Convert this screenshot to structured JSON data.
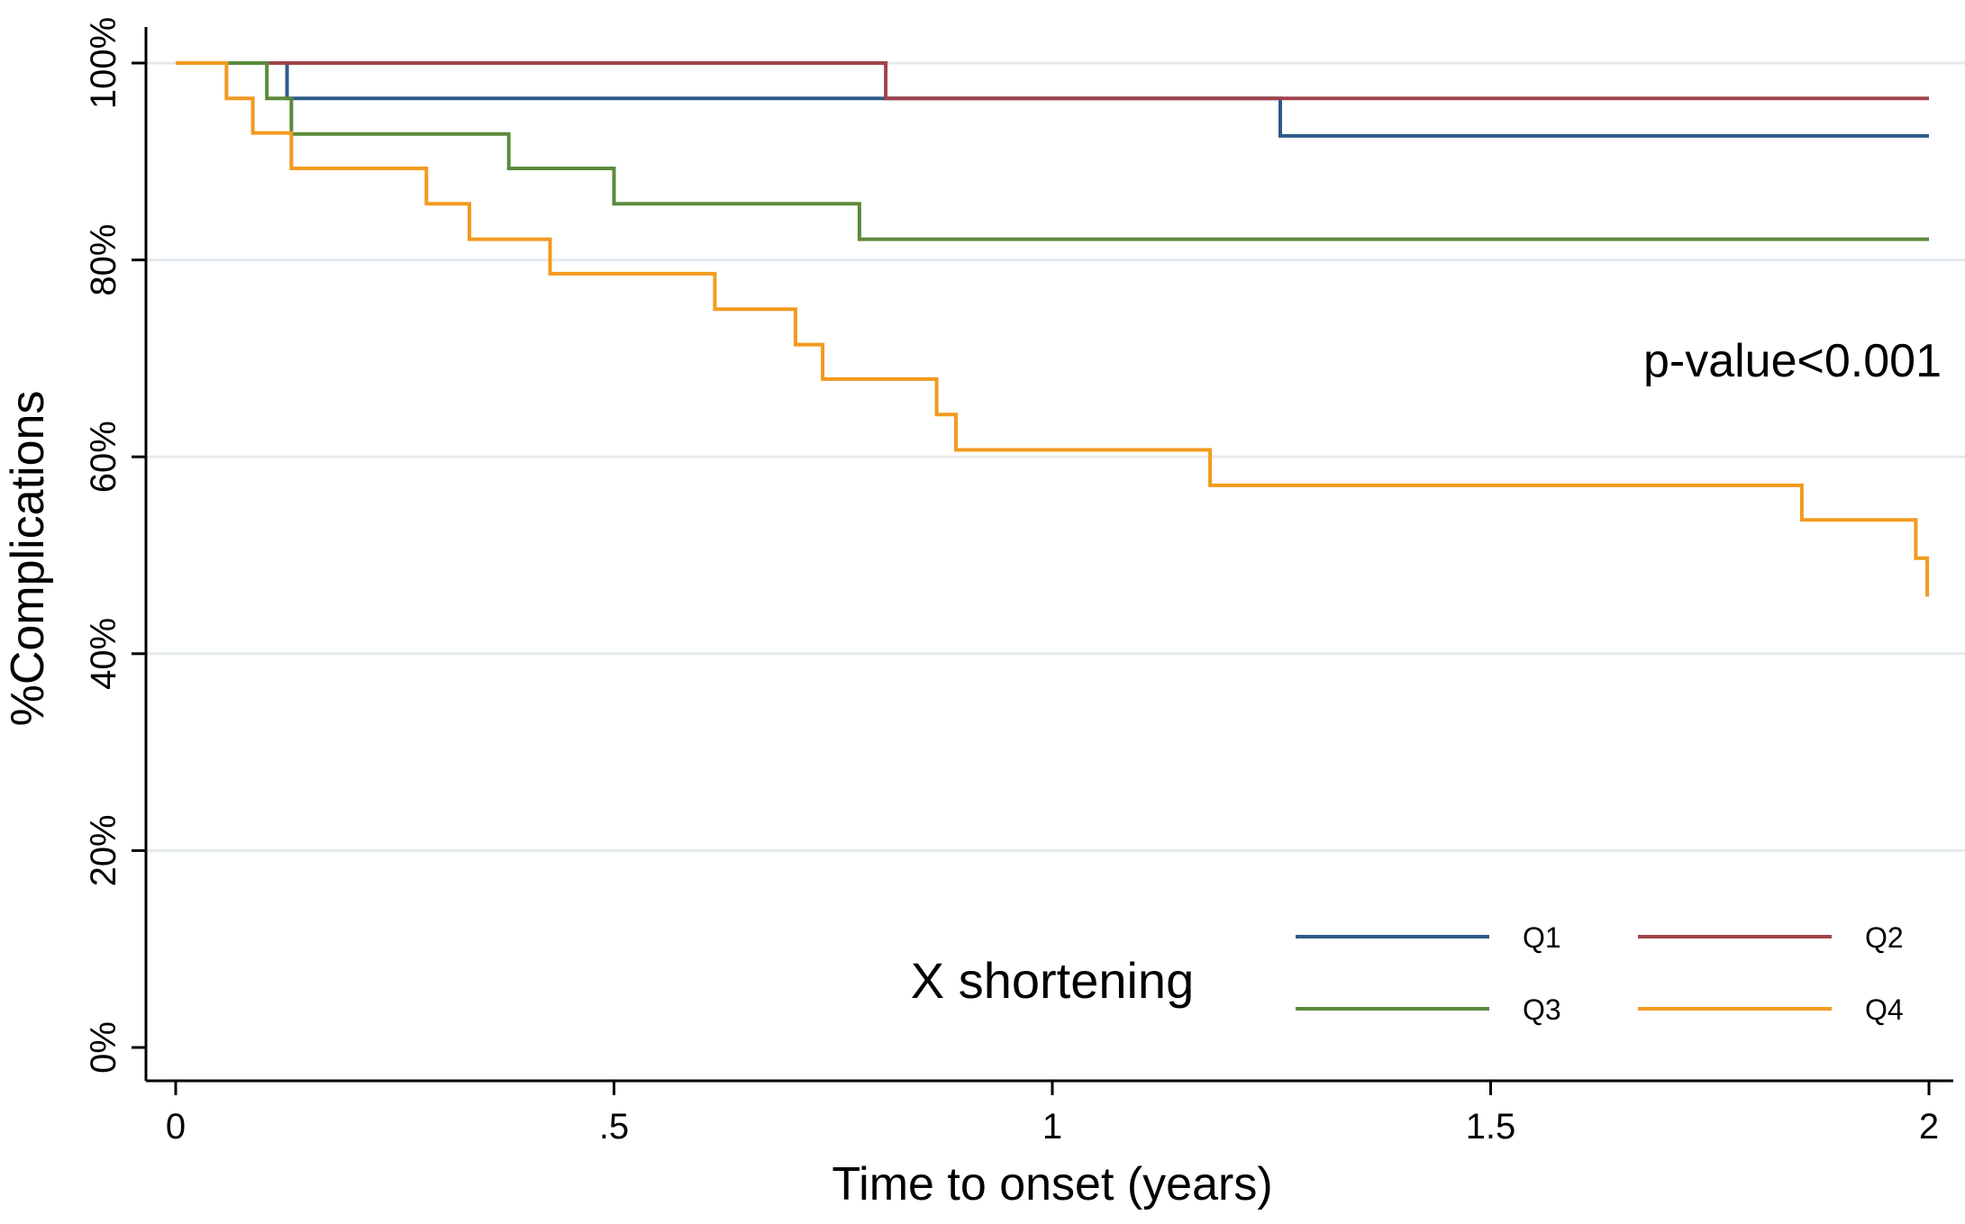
{
  "chart_data": {
    "type": "line",
    "subtype": "kaplan-meier-step",
    "title": "",
    "xlabel": "Time to onset (years)",
    "ylabel": "%Complications",
    "xlim": [
      0,
      2
    ],
    "ylim": [
      0,
      100
    ],
    "x_ticks": [
      {
        "value": 0,
        "label": "0"
      },
      {
        "value": 0.5,
        "label": ".5"
      },
      {
        "value": 1,
        "label": "1"
      },
      {
        "value": 1.5,
        "label": "1.5"
      },
      {
        "value": 2,
        "label": "2"
      }
    ],
    "y_ticks": [
      {
        "value": 0,
        "label": "0%"
      },
      {
        "value": 20,
        "label": "20%"
      },
      {
        "value": 40,
        "label": "40%"
      },
      {
        "value": 60,
        "label": "60%"
      },
      {
        "value": 80,
        "label": "80%"
      },
      {
        "value": 100,
        "label": "100%"
      }
    ],
    "grid": "horizontal",
    "annotation": "p-value<0.001",
    "legend": {
      "title": "X shortening",
      "placement": "bottom-right"
    },
    "series": [
      {
        "name": "Q1",
        "color": "#2e5a87",
        "x": [
          0,
          0.127,
          0.127,
          1.26,
          1.26,
          2.0
        ],
        "y": [
          100,
          100,
          96.4,
          96.4,
          92.6,
          92.6
        ]
      },
      {
        "name": "Q2",
        "color": "#a0434b",
        "x": [
          0,
          0.81,
          0.81,
          2.0
        ],
        "y": [
          100,
          100,
          96.4,
          96.4
        ]
      },
      {
        "name": "Q3",
        "color": "#5b8a3c",
        "x": [
          0,
          0.104,
          0.104,
          0.132,
          0.132,
          0.38,
          0.38,
          0.5,
          0.5,
          0.78,
          0.78,
          2.0
        ],
        "y": [
          100,
          100,
          96.4,
          96.4,
          92.8,
          92.8,
          89.3,
          89.3,
          85.7,
          85.7,
          82.1,
          82.1
        ]
      },
      {
        "name": "Q4",
        "color": "#f39a1e",
        "x": [
          0,
          0.058,
          0.058,
          0.088,
          0.088,
          0.132,
          0.132,
          0.286,
          0.286,
          0.335,
          0.335,
          0.427,
          0.427,
          0.615,
          0.615,
          0.707,
          0.707,
          0.738,
          0.738,
          0.868,
          0.868,
          0.89,
          0.89,
          1.18,
          1.18,
          1.855,
          1.855,
          1.985,
          1.985,
          1.998,
          1.998
        ],
        "y": [
          100,
          100,
          96.4,
          96.4,
          92.9,
          92.9,
          89.3,
          89.3,
          85.7,
          85.7,
          82.1,
          82.1,
          78.6,
          78.6,
          75.0,
          75.0,
          71.4,
          71.4,
          67.9,
          67.9,
          64.3,
          64.3,
          60.7,
          60.7,
          57.1,
          57.1,
          53.6,
          53.6,
          49.7,
          49.7,
          45.8
        ]
      }
    ]
  }
}
